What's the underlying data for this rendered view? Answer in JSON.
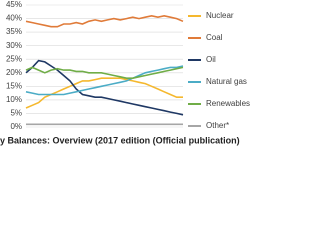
{
  "chart_data": {
    "type": "line",
    "caption": "y Balances: Overview (2017 edition (Official publication)",
    "categories": [
      null,
      null,
      null,
      null,
      null,
      null,
      null,
      null,
      null,
      null,
      null,
      null,
      null,
      null,
      null,
      null,
      null,
      null,
      null,
      null,
      null,
      null,
      null,
      null,
      null,
      null
    ],
    "series": [
      {
        "name": "Nuclear",
        "color": "#f5b82e",
        "values": [
          7,
          8,
          9,
          11,
          12,
          13,
          14,
          15,
          16,
          17,
          17,
          17.5,
          18,
          18,
          18,
          18,
          17.5,
          17,
          16.5,
          16,
          15,
          14,
          13,
          12,
          11,
          11
        ]
      },
      {
        "name": "Coal",
        "color": "#e07b39",
        "values": [
          39,
          38.5,
          38,
          37.5,
          37,
          37,
          38,
          38,
          38.5,
          38,
          39,
          39.5,
          39,
          39.5,
          40,
          39.5,
          40,
          40.5,
          40,
          40.5,
          41,
          40.5,
          41,
          40.5,
          40,
          39
        ]
      },
      {
        "name": "Oil",
        "color": "#1f3864",
        "values": [
          20,
          22,
          24.5,
          24,
          22.5,
          21,
          19,
          17,
          14,
          12,
          11.5,
          11,
          11,
          10.5,
          10,
          9.5,
          9,
          8.5,
          8,
          7.5,
          7,
          6.5,
          6,
          5.5,
          5,
          4.5
        ]
      },
      {
        "name": "Natural gas",
        "color": "#4bacc6",
        "values": [
          13,
          12.5,
          12,
          12,
          12,
          12,
          12,
          12.5,
          13,
          13.5,
          14,
          14.5,
          15,
          15.5,
          16,
          16.5,
          17,
          18,
          19,
          20,
          20.5,
          21,
          21.5,
          22,
          22,
          22.5
        ]
      },
      {
        "name": "Renewables",
        "color": "#70ad47",
        "values": [
          21,
          22,
          21,
          20,
          21,
          21.5,
          21,
          21,
          20.5,
          20.5,
          20,
          20,
          20,
          19.5,
          19,
          18.5,
          18,
          18,
          18.5,
          19,
          19.5,
          20,
          20.5,
          21,
          21.5,
          22
        ]
      },
      {
        "name": "Other*",
        "color": "#a6a6a6",
        "values": [
          1,
          1,
          1,
          1,
          1,
          1,
          1,
          1,
          1,
          1,
          1,
          1,
          1,
          1,
          1,
          1,
          1,
          1,
          1,
          1,
          1,
          1,
          1,
          1,
          1,
          1
        ]
      }
    ],
    "ylim": [
      0,
      45
    ],
    "yticks": [
      {
        "value": 0,
        "label": "0%"
      },
      {
        "value": 5,
        "label": "5%"
      },
      {
        "value": 10,
        "label": "10%"
      },
      {
        "value": 15,
        "label": "15%"
      },
      {
        "value": 20,
        "label": "20%"
      },
      {
        "value": 25,
        "label": "25%"
      },
      {
        "value": 30,
        "label": "30%"
      },
      {
        "value": 35,
        "label": "35%"
      },
      {
        "value": 40,
        "label": "40%"
      },
      {
        "value": 45,
        "label": "45%"
      }
    ],
    "grid": true
  }
}
